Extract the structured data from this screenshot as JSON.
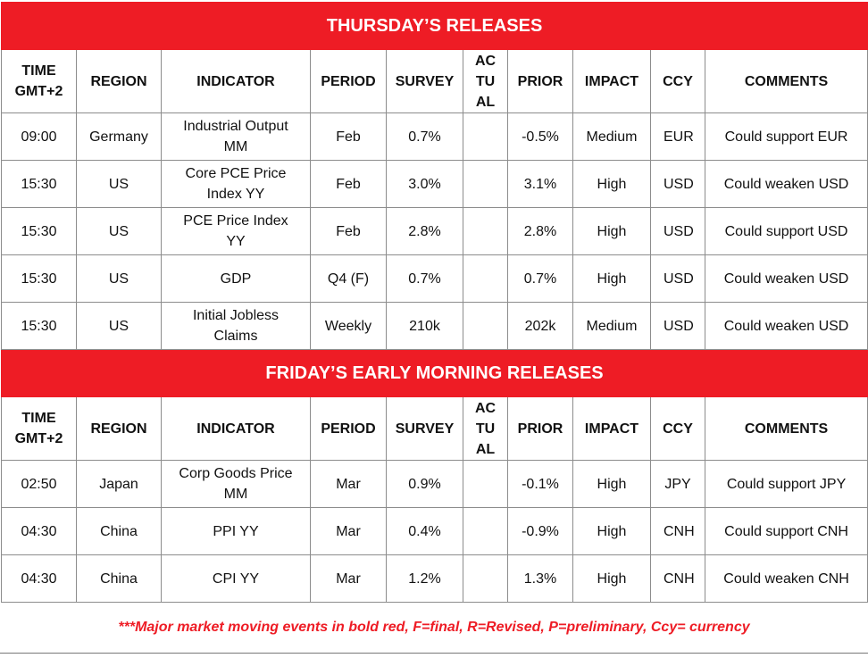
{
  "sections": [
    {
      "title": "THURSDAY’S RELEASES",
      "headers": [
        [
          "TIME",
          "GMT+2"
        ],
        [
          "REGION"
        ],
        [
          "INDICATOR"
        ],
        [
          "PERIOD"
        ],
        [
          "SURVEY"
        ],
        [
          "AC",
          "TU",
          "AL"
        ],
        [
          "PRIOR"
        ],
        [
          "IMPACT"
        ],
        [
          "CCY"
        ],
        [
          "COMMENTS"
        ]
      ],
      "rows": [
        [
          "09:00",
          "Germany",
          "Industrial Output MM",
          "Feb",
          "0.7%",
          "-0.5%",
          "Medium",
          "EUR",
          "Could support EUR"
        ],
        [
          "15:30",
          "US",
          "Core PCE Price Index YY",
          "Feb",
          "3.0%",
          "3.1%",
          "High",
          "USD",
          "Could weaken USD"
        ],
        [
          "15:30",
          "US",
          "PCE Price Index YY",
          "Feb",
          "2.8%",
          "2.8%",
          "High",
          "USD",
          "Could support USD"
        ],
        [
          "15:30",
          "US",
          "GDP",
          "Q4 (F)",
          "0.7%",
          "0.7%",
          "High",
          "USD",
          "Could weaken USD"
        ],
        [
          "15:30",
          "US",
          "Initial Jobless Claims",
          "Weekly",
          "210k",
          "202k",
          "Medium",
          "USD",
          "Could weaken USD"
        ]
      ]
    },
    {
      "title": "FRIDAY’S EARLY MORNING RELEASES",
      "headers": [
        [
          "TIME",
          "GMT+2"
        ],
        [
          "REGION"
        ],
        [
          "INDICATOR"
        ],
        [
          "PERIOD"
        ],
        [
          "SURVEY"
        ],
        [
          "AC",
          "TU",
          "AL"
        ],
        [
          "PRIOR"
        ],
        [
          "IMPACT"
        ],
        [
          "CCY"
        ],
        [
          "COMMENTS"
        ]
      ],
      "rows": [
        [
          "02:50",
          "Japan",
          "Corp Goods Price MM",
          "Mar",
          "0.9%",
          "-0.1%",
          "High",
          "JPY",
          "Could support JPY"
        ],
        [
          "04:30",
          "China",
          "PPI YY",
          "Mar",
          "0.4%",
          "-0.9%",
          "High",
          "CNH",
          "Could support CNH"
        ],
        [
          "04:30",
          "China",
          "CPI YY",
          "Mar",
          "1.2%",
          "1.3%",
          "High",
          "CNH",
          "Could weaken CNH"
        ]
      ]
    }
  ],
  "footnote": "***Major market moving events in bold red, F=final, R=Revised, P=preliminary, Ccy= currency"
}
